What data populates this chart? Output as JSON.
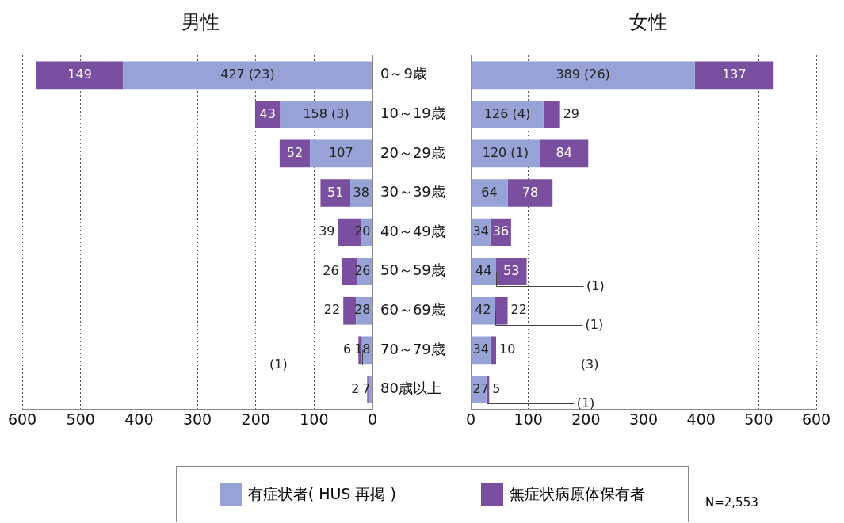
{
  "chart_data": [
    {
      "type": "bar",
      "title": "男性",
      "orientation": "horizontal",
      "stacked": true,
      "categories": [
        "0～9歳",
        "10～19歳",
        "20～29歳",
        "30～39歳",
        "40～49歳",
        "50～59歳",
        "60～69歳",
        "70～79歳",
        "80歳以上"
      ],
      "series": [
        {
          "name": "有症状者( HUS 再掲 )",
          "color": "#97a3d6",
          "values": [
            427,
            158,
            107,
            38,
            20,
            26,
            28,
            18,
            7
          ],
          "value_labels": [
            "427 (23)",
            "158 (3)",
            "107",
            "38",
            "20",
            "26",
            "28",
            "18",
            "7"
          ]
        },
        {
          "name": "無症状病原体保有者",
          "color": "#7b4fa0",
          "values": [
            149,
            43,
            52,
            51,
            39,
            26,
            22,
            6,
            2
          ],
          "value_labels": [
            "149",
            "43",
            "52",
            "51",
            "39",
            "26",
            "22",
            "6",
            "2"
          ]
        }
      ],
      "xlim": [
        600,
        0
      ],
      "xticks": [
        0,
        100,
        200,
        300,
        400,
        500,
        600
      ],
      "grid": "x",
      "legend": "bottom",
      "annotations": [
        {
          "text": "(1)",
          "x": 18,
          "y": "70～79歳"
        },
        "N=2,553"
      ]
    },
    {
      "type": "bar",
      "title": "女性",
      "orientation": "horizontal",
      "stacked": true,
      "tick_labels": "x",
      "categories": [
        "0～9歳",
        "10～19歳",
        "20～29歳",
        "30～39歳",
        "40～49歳",
        "50～59歳",
        "60～69歳",
        "70～79歳",
        "80歳以上"
      ],
      "series": [
        {
          "color": "#97a3d6",
          "values": [
            389,
            126,
            120,
            64,
            34,
            44,
            42,
            34,
            27
          ],
          "value_labels": [
            "389 (26)",
            "126 (4)",
            "120 (1)",
            "64",
            "34",
            "44",
            "42",
            "34",
            "27"
          ]
        },
        {
          "color": "#7b4fa0",
          "values": [
            137,
            29,
            84,
            78,
            36,
            53,
            22,
            10,
            5
          ],
          "value_labels": [
            "137",
            "29",
            "84",
            "78",
            "36",
            "53",
            "22",
            "10",
            "5"
          ]
        }
      ],
      "xlim": [
        0,
        600
      ],
      "xticks": [
        0,
        100,
        200,
        300,
        400,
        500,
        600
      ],
      "grid": "x",
      "annotations": [
        {
          "text": "(1)",
          "x": 44,
          "y": "50～59歳"
        },
        {
          "text": "(1)",
          "x": 42,
          "y": "60～69歳"
        },
        {
          "text": "(3)",
          "x": 34,
          "y": "70～79歳"
        },
        {
          "text": "(1)",
          "x": 27,
          "y": "80歳以上"
        }
      ]
    }
  ]
}
